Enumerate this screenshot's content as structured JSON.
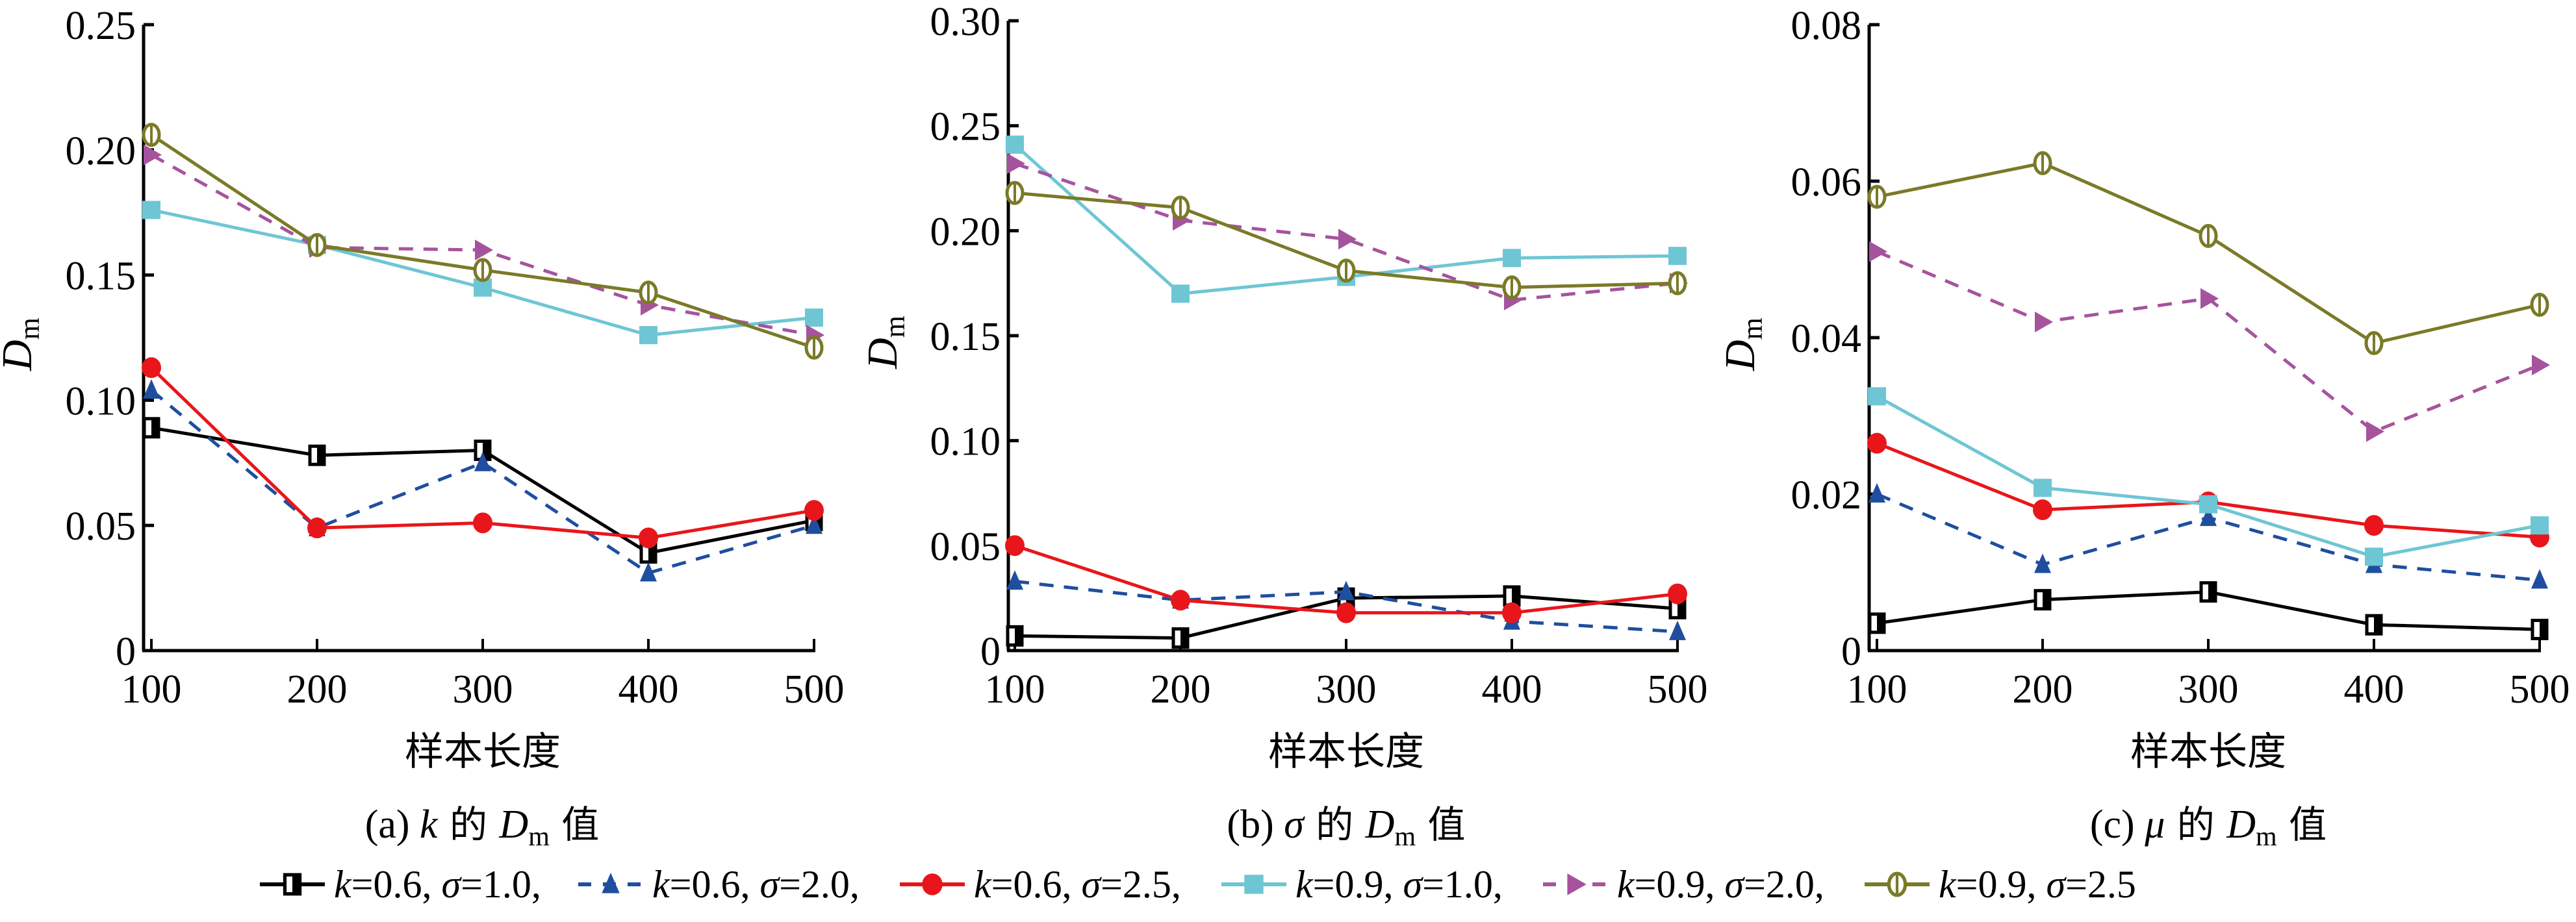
{
  "chart_data": [
    {
      "type": "line",
      "title": "(a) k 的 Dm 值",
      "caption": {
        "prefix": "(a) ",
        "symbol": "k",
        "mid": " 的 ",
        "D": "D",
        "sub": "m",
        "suffix": " 值"
      },
      "xlabel": "样本长度",
      "ylabel": {
        "main": "D",
        "sub": "m"
      },
      "x": [
        100,
        200,
        300,
        400,
        500
      ],
      "xticks": [
        "100",
        "200",
        "300",
        "400",
        "500"
      ],
      "ylim": [
        0,
        0.25
      ],
      "yticks": [
        0,
        0.05,
        0.1,
        0.15,
        0.2,
        0.25
      ],
      "ytick_labels": [
        "0",
        "0.05",
        "0.10",
        "0.15",
        "0.20",
        "0.25"
      ],
      "grid": false,
      "series": [
        {
          "name": "k=0.6, σ=1.0",
          "values": [
            0.089,
            0.078,
            0.08,
            0.039,
            0.052
          ]
        },
        {
          "name": "k=0.6, σ=2.0",
          "values": [
            0.104,
            0.049,
            0.075,
            0.031,
            0.05
          ]
        },
        {
          "name": "k=0.6, σ=2.5",
          "values": [
            0.113,
            0.049,
            0.051,
            0.045,
            0.056
          ]
        },
        {
          "name": "k=0.9, σ=1.0",
          "values": [
            0.176,
            0.162,
            0.145,
            0.126,
            0.133
          ]
        },
        {
          "name": "k=0.9, σ=2.0",
          "values": [
            0.198,
            0.161,
            0.16,
            0.138,
            0.126
          ]
        },
        {
          "name": "k=0.9, σ=2.5",
          "values": [
            0.206,
            0.162,
            0.152,
            0.143,
            0.121
          ]
        }
      ]
    },
    {
      "type": "line",
      "title": "(b) σ 的 Dm 值",
      "caption": {
        "prefix": "(b) ",
        "symbol": "σ",
        "mid": " 的 ",
        "D": "D",
        "sub": "m",
        "suffix": " 值"
      },
      "xlabel": "样本长度",
      "ylabel": {
        "main": "D",
        "sub": "m"
      },
      "x": [
        100,
        200,
        300,
        400,
        500
      ],
      "xticks": [
        "100",
        "200",
        "300",
        "400",
        "500"
      ],
      "ylim": [
        0,
        0.3
      ],
      "yticks": [
        0,
        0.05,
        0.1,
        0.15,
        0.2,
        0.25,
        0.3
      ],
      "ytick_labels": [
        "0",
        "0.05",
        "0.10",
        "0.15",
        "0.20",
        "0.25",
        "0.30"
      ],
      "grid": false,
      "series": [
        {
          "name": "k=0.6, σ=1.0",
          "values": [
            0.007,
            0.006,
            0.025,
            0.026,
            0.02
          ]
        },
        {
          "name": "k=0.6, σ=2.0",
          "values": [
            0.033,
            0.024,
            0.028,
            0.014,
            0.009
          ]
        },
        {
          "name": "k=0.6, σ=2.5",
          "values": [
            0.05,
            0.024,
            0.018,
            0.018,
            0.027
          ]
        },
        {
          "name": "k=0.9, σ=1.0",
          "values": [
            0.241,
            0.17,
            0.178,
            0.187,
            0.188
          ]
        },
        {
          "name": "k=0.9, σ=2.0",
          "values": [
            0.232,
            0.205,
            0.196,
            0.167,
            0.175
          ]
        },
        {
          "name": "k=0.9, σ=2.5",
          "values": [
            0.218,
            0.211,
            0.181,
            0.173,
            0.175
          ]
        }
      ]
    },
    {
      "type": "line",
      "title": "(c) μ 的 Dm 值",
      "caption": {
        "prefix": "(c) ",
        "symbol": "μ",
        "mid": " 的 ",
        "D": "D",
        "sub": "m",
        "suffix": " 值"
      },
      "xlabel": "样本长度",
      "ylabel": {
        "main": "D",
        "sub": "m"
      },
      "x": [
        100,
        200,
        300,
        400,
        500
      ],
      "xticks": [
        "100",
        "200",
        "300",
        "400",
        "500"
      ],
      "ylim": [
        0,
        0.08
      ],
      "yticks": [
        0,
        0.02,
        0.04,
        0.06,
        0.08
      ],
      "ytick_labels": [
        "0",
        "0.02",
        "0.04",
        "0.06",
        "0.08"
      ],
      "grid": false,
      "series": [
        {
          "name": "k=0.6, σ=1.0",
          "values": [
            0.0035,
            0.0065,
            0.0075,
            0.0033,
            0.0027
          ]
        },
        {
          "name": "k=0.6, σ=2.0",
          "values": [
            0.02,
            0.011,
            0.017,
            0.011,
            0.009
          ]
        },
        {
          "name": "k=0.6, σ=2.5",
          "values": [
            0.0265,
            0.018,
            0.019,
            0.016,
            0.0145
          ]
        },
        {
          "name": "k=0.9, σ=1.0",
          "values": [
            0.0325,
            0.0208,
            0.0187,
            0.012,
            0.016
          ]
        },
        {
          "name": "k=0.9, σ=2.0",
          "values": [
            0.051,
            0.042,
            0.045,
            0.028,
            0.0365
          ]
        },
        {
          "name": "k=0.9, σ=2.5",
          "values": [
            0.058,
            0.0623,
            0.053,
            0.0393,
            0.0442
          ]
        }
      ]
    }
  ],
  "legend": {
    "placement": "bottom-center",
    "items": [
      {
        "k": "0.6",
        "sigma": "1.0",
        "sep": ",",
        "color": "#000000",
        "dashed": false,
        "marker": "half-filled-square"
      },
      {
        "k": "0.6",
        "sigma": "2.0",
        "sep": ",",
        "color": "#1f4e9e",
        "dashed": true,
        "marker": "filled-triangle"
      },
      {
        "k": "0.6",
        "sigma": "2.5",
        "sep": ",",
        "color": "#e8161b",
        "dashed": false,
        "marker": "filled-circle"
      },
      {
        "k": "0.9",
        "sigma": "1.0",
        "sep": ",",
        "color": "#6ec6d4",
        "dashed": false,
        "marker": "filled-square"
      },
      {
        "k": "0.9",
        "sigma": "2.0",
        "sep": ",",
        "color": "#a6539e",
        "dashed": true,
        "marker": "filled-right-triangle"
      },
      {
        "k": "0.9",
        "sigma": "2.5",
        "sep": "",
        "color": "#7a7a28",
        "dashed": false,
        "marker": "half-open-circle"
      }
    ],
    "k_symbol": "k",
    "sigma_symbol": "σ",
    "eq": "="
  }
}
